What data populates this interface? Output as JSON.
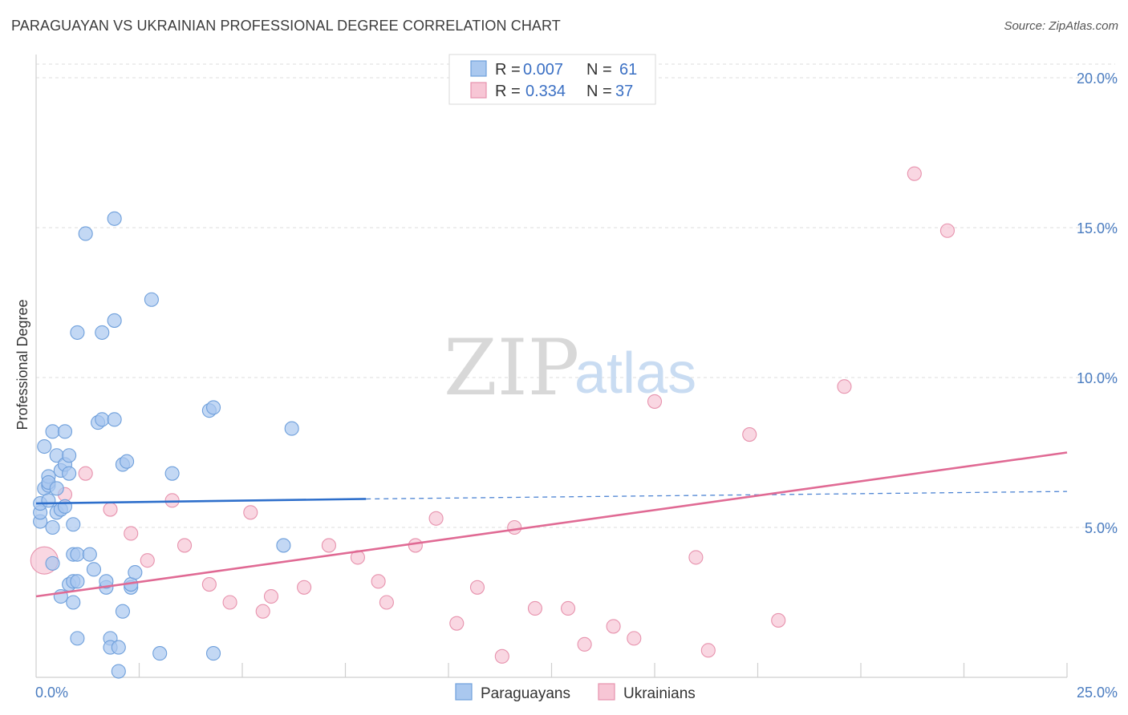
{
  "title": "PARAGUAYAN VS UKRAINIAN PROFESSIONAL DEGREE CORRELATION CHART",
  "source": "Source: ZipAtlas.com",
  "watermark": {
    "zip": "ZIP",
    "atlas": "atlas"
  },
  "colors": {
    "blue_fill": "#aac8ef",
    "blue_stroke": "#6e9fdb",
    "blue_line": "#2e6fcb",
    "pink_fill": "#f7c6d5",
    "pink_stroke": "#e792ad",
    "pink_line": "#e06a94",
    "grid": "#dcdcdc",
    "tick_text": "#4a7cc0"
  },
  "legend": {
    "rows": [
      {
        "r_label": "R = ",
        "r_value": "0.007",
        "n_label": "N = ",
        "n_value": "61"
      },
      {
        "r_label": "R = ",
        "r_value": "0.334",
        "n_label": "N = ",
        "n_value": "37"
      }
    ]
  },
  "bottom_legend": [
    "Paraguayans",
    "Ukrainians"
  ],
  "chart_data": {
    "type": "scatter",
    "title": "PARAGUAYAN VS UKRAINIAN PROFESSIONAL DEGREE CORRELATION CHART",
    "xlabel": "",
    "ylabel": "Professional Degree",
    "xlim": [
      0,
      25
    ],
    "ylim": [
      0,
      20.5
    ],
    "x_tick_labels": [
      {
        "value": 0,
        "label": "0.0%"
      },
      {
        "value": 25,
        "label": "25.0%"
      }
    ],
    "y_tick_labels": [
      {
        "value": 5,
        "label": "5.0%"
      },
      {
        "value": 10,
        "label": "10.0%"
      },
      {
        "value": 15,
        "label": "15.0%"
      },
      {
        "value": 20,
        "label": "20.0%"
      }
    ],
    "x_minor_ticks": [
      2.5,
      5,
      7.5,
      10,
      12.5,
      15,
      17.5,
      20,
      22.5,
      25
    ],
    "series": [
      {
        "name": "Paraguayans",
        "color": "blue",
        "R": 0.007,
        "N": 61,
        "points": [
          [
            0.1,
            5.2
          ],
          [
            0.1,
            5.5
          ],
          [
            0.1,
            5.8
          ],
          [
            0.2,
            6.3
          ],
          [
            0.2,
            7.7
          ],
          [
            0.3,
            6.4
          ],
          [
            0.3,
            6.7
          ],
          [
            0.3,
            6.5
          ],
          [
            0.3,
            5.9
          ],
          [
            0.4,
            8.2
          ],
          [
            0.4,
            3.8
          ],
          [
            0.4,
            5.0
          ],
          [
            0.5,
            5.5
          ],
          [
            0.5,
            6.3
          ],
          [
            0.5,
            7.4
          ],
          [
            0.6,
            5.6
          ],
          [
            0.6,
            2.7
          ],
          [
            0.6,
            6.9
          ],
          [
            0.7,
            5.7
          ],
          [
            0.7,
            8.2
          ],
          [
            0.7,
            7.1
          ],
          [
            0.8,
            3.1
          ],
          [
            0.8,
            7.4
          ],
          [
            0.8,
            6.8
          ],
          [
            0.9,
            3.2
          ],
          [
            0.9,
            5.1
          ],
          [
            0.9,
            2.5
          ],
          [
            0.9,
            4.1
          ],
          [
            1.0,
            1.3
          ],
          [
            1.0,
            3.2
          ],
          [
            1.0,
            4.1
          ],
          [
            1.0,
            11.5
          ],
          [
            1.2,
            14.8
          ],
          [
            1.3,
            4.1
          ],
          [
            1.4,
            3.6
          ],
          [
            1.5,
            8.5
          ],
          [
            1.6,
            8.6
          ],
          [
            1.6,
            11.5
          ],
          [
            1.7,
            3.0
          ],
          [
            1.7,
            3.2
          ],
          [
            1.8,
            1.3
          ],
          [
            1.8,
            1.0
          ],
          [
            1.9,
            11.9
          ],
          [
            1.9,
            15.3
          ],
          [
            1.9,
            8.6
          ],
          [
            2.0,
            1.0
          ],
          [
            2.0,
            0.2
          ],
          [
            2.1,
            2.2
          ],
          [
            2.1,
            7.1
          ],
          [
            2.2,
            7.2
          ],
          [
            2.3,
            3.0
          ],
          [
            2.3,
            3.1
          ],
          [
            2.4,
            3.5
          ],
          [
            2.8,
            12.6
          ],
          [
            3.0,
            0.8
          ],
          [
            3.3,
            6.8
          ],
          [
            4.2,
            8.9
          ],
          [
            4.3,
            9.0
          ],
          [
            4.3,
            0.8
          ],
          [
            6.2,
            8.3
          ],
          [
            6.0,
            4.4
          ]
        ]
      },
      {
        "name": "Ukrainians",
        "color": "pink",
        "R": 0.334,
        "N": 37,
        "points": [
          [
            0.2,
            3.9
          ],
          [
            0.7,
            6.1
          ],
          [
            1.2,
            6.8
          ],
          [
            1.8,
            5.6
          ],
          [
            2.3,
            4.8
          ],
          [
            2.7,
            3.9
          ],
          [
            3.3,
            5.9
          ],
          [
            3.6,
            4.4
          ],
          [
            4.2,
            3.1
          ],
          [
            4.7,
            2.5
          ],
          [
            5.2,
            5.5
          ],
          [
            5.5,
            2.2
          ],
          [
            5.7,
            2.7
          ],
          [
            6.5,
            3.0
          ],
          [
            7.1,
            4.4
          ],
          [
            7.8,
            4.0
          ],
          [
            8.3,
            3.2
          ],
          [
            8.5,
            2.5
          ],
          [
            9.2,
            4.4
          ],
          [
            9.7,
            5.3
          ],
          [
            10.2,
            1.8
          ],
          [
            10.7,
            3.0
          ],
          [
            11.3,
            0.7
          ],
          [
            11.6,
            5.0
          ],
          [
            12.1,
            2.3
          ],
          [
            12.9,
            2.3
          ],
          [
            13.3,
            1.1
          ],
          [
            14.0,
            1.7
          ],
          [
            14.5,
            1.3
          ],
          [
            15.0,
            9.2
          ],
          [
            16.0,
            4.0
          ],
          [
            16.3,
            0.9
          ],
          [
            17.3,
            8.1
          ],
          [
            18.0,
            1.9
          ],
          [
            19.6,
            9.7
          ],
          [
            21.3,
            16.8
          ],
          [
            22.1,
            14.9
          ]
        ]
      }
    ],
    "trend_lines": [
      {
        "series": "Paraguayans",
        "solid": [
          [
            0,
            5.8
          ],
          [
            8.0,
            5.95
          ]
        ],
        "dashed": [
          [
            8.0,
            5.95
          ],
          [
            25,
            6.2
          ]
        ]
      },
      {
        "series": "Ukrainians",
        "solid": [
          [
            0,
            2.7
          ],
          [
            25,
            7.5
          ]
        ]
      }
    ]
  }
}
